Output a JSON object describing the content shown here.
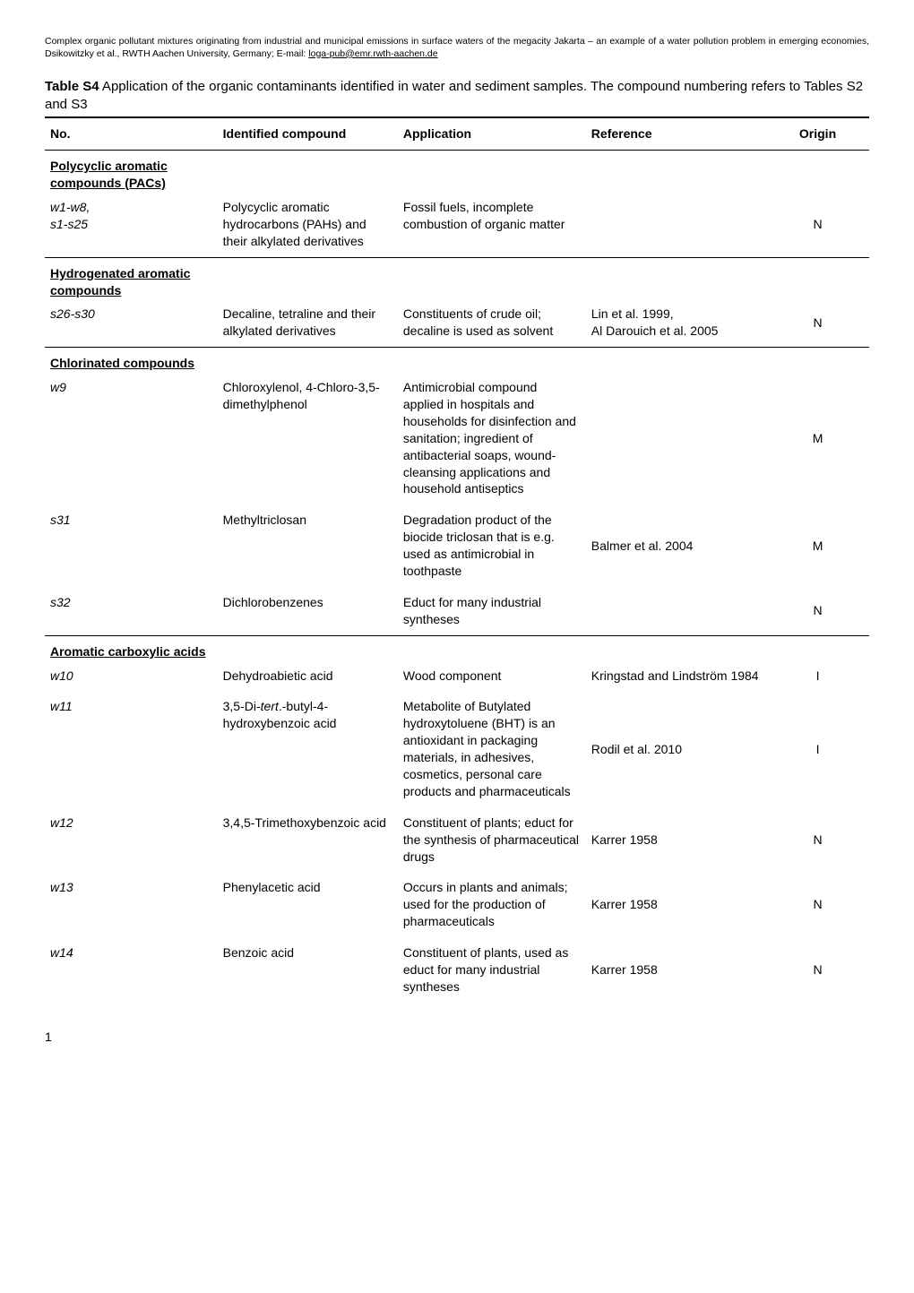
{
  "header_note_pre": "Complex organic pollutant mixtures originating from industrial and municipal emissions in surface waters of the megacity Jakarta – an example of a water pollution problem in emerging economies, Dsikowitzky et al., RWTH Aachen University, Germany; E-mail: ",
  "header_note_email": "loga-pub@emr.rwth-aachen.de",
  "table_title_bold": "Table S4",
  "table_title_rest": " Application of the organic contaminants identified in water and sediment samples. The compound numbering refers to Tables S2 and S3",
  "columns": {
    "no": "No.",
    "compound": "Identified compound",
    "application": "Application",
    "reference": "Reference",
    "origin": "Origin"
  },
  "sections": [
    {
      "title": "Polycyclic aromatic compounds (PACs)",
      "rows": [
        {
          "no": "w1-w8,\ns1-s25",
          "compound": "Polycyclic aromatic hydrocarbons (PAHs) and their alkylated derivatives",
          "application": "Fossil fuels, incomplete combustion of organic matter",
          "reference": "",
          "origin": "N"
        }
      ]
    },
    {
      "title": "Hydrogenated aromatic compounds",
      "rows": [
        {
          "no": "s26-s30",
          "compound": "Decaline, tetraline and their alkylated derivatives",
          "application": "Constituents of crude oil; decaline is used as solvent",
          "reference": "Lin et al. 1999,\nAl Darouich et al. 2005",
          "origin": "N"
        }
      ]
    },
    {
      "title": "Chlorinated compounds",
      "rows": [
        {
          "no": "w9",
          "compound": "Chloroxylenol, 4-Chloro-3,5-dimethylphenol",
          "application": "Antimicrobial compound applied in hospitals and households for disinfection and sanitation; ingredient of antibacterial soaps, wound-cleansing applications and household antiseptics",
          "reference": "",
          "origin": "M"
        },
        {
          "no": "s31",
          "compound": "Methyltriclosan",
          "application": "Degradation product of the biocide triclosan that is e.g. used as antimicrobial in toothpaste",
          "reference": "Balmer et al. 2004",
          "origin": "M"
        },
        {
          "no": "s32",
          "compound": "Dichlorobenzenes",
          "application": "Educt for many industrial syntheses",
          "reference": "",
          "origin": "N"
        }
      ]
    },
    {
      "title": "Aromatic carboxylic acids",
      "rows": [
        {
          "no": "w10",
          "compound": "Dehydroabietic acid",
          "application": "Wood component",
          "reference": "Kringstad and Lindström 1984",
          "origin": "I"
        },
        {
          "no": "w11",
          "compound_html": "3,5-Di-<i>tert</i>.-butyl-4-hydroxybenzoic acid",
          "application": "Metabolite of Butylated hydroxytoluene (BHT) is an antioxidant in packaging materials, in adhesives, cosmetics, personal care products and pharmaceuticals",
          "reference": "Rodil et al. 2010",
          "origin": "I"
        },
        {
          "no": "w12",
          "compound": "3,4,5-Trimethoxybenzoic acid",
          "application": "Constituent of plants; educt for the synthesis of pharmaceutical drugs",
          "reference": "Karrer 1958",
          "origin": "N"
        },
        {
          "no": "w13",
          "compound": "Phenylacetic acid",
          "application": "Occurs in plants and animals; used for the production of pharmaceuticals",
          "reference": "Karrer 1958",
          "origin": "N"
        },
        {
          "no": "w14",
          "compound": "Benzoic acid",
          "application": "Constituent of plants, used as educt for many industrial syntheses",
          "reference": "Karrer 1958",
          "origin": "N"
        }
      ]
    }
  ],
  "page_number": "1"
}
